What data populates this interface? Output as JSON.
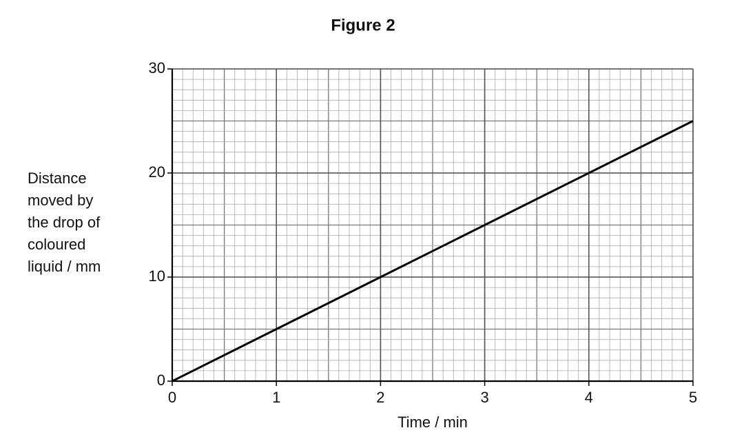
{
  "chart_data": {
    "type": "line",
    "title": "Figure 2",
    "xlabel": "Time / min",
    "ylabel": [
      "Distance",
      "moved by",
      "the drop of",
      "coloured",
      "liquid / mm"
    ],
    "x": [
      0,
      1,
      2,
      3,
      4,
      5
    ],
    "values": [
      0,
      5,
      10,
      15,
      20,
      25
    ],
    "color": "#000000",
    "xlim": [
      0,
      5
    ],
    "xticks": [
      0,
      1,
      2,
      3,
      4,
      5
    ],
    "ylim": [
      0,
      30
    ],
    "yticks": [
      0,
      10,
      20,
      30
    ],
    "grid": true
  }
}
